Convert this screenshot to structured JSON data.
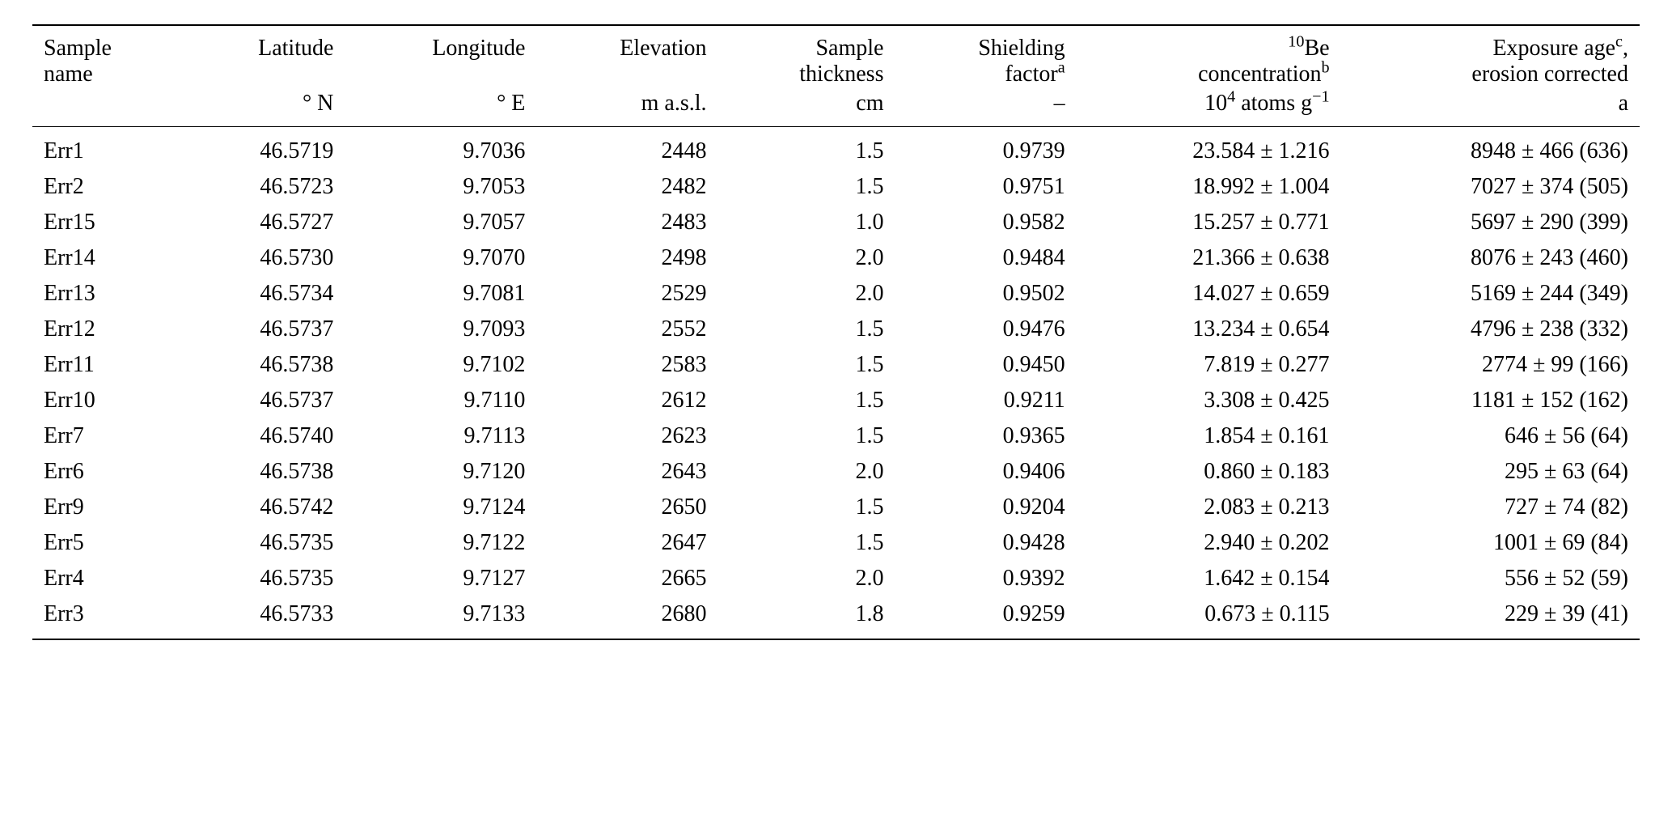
{
  "table": {
    "background_color": "#ffffff",
    "text_color": "#000000",
    "border_color": "#000000",
    "font_family": "Times New Roman",
    "base_fontsize_pt": 21,
    "columns": [
      {
        "key": "sample",
        "align": "left",
        "line1": "Sample",
        "line2": "name",
        "unit": ""
      },
      {
        "key": "lat",
        "align": "right",
        "line1": "Latitude",
        "line2": "",
        "unit": "° N"
      },
      {
        "key": "lon",
        "align": "right",
        "line1": "Longitude",
        "line2": "",
        "unit": "° E"
      },
      {
        "key": "elev",
        "align": "right",
        "line1": "Elevation",
        "line2": "",
        "unit": "m a.s.l."
      },
      {
        "key": "thick",
        "align": "right",
        "line1": "Sample",
        "line2": "thickness",
        "unit": "cm"
      },
      {
        "key": "shield",
        "align": "right",
        "line1": "Shielding",
        "line2": "factor",
        "sup2": "a",
        "unit": "–"
      },
      {
        "key": "be10",
        "align": "right",
        "line1_html": "<sup>10</sup>Be",
        "line2": "concentration",
        "sup2": "b",
        "unit_html": "10<sup>4</sup> atoms g<sup>−1</sup>"
      },
      {
        "key": "age",
        "align": "right",
        "line1": "Exposure age",
        "sup1": "c",
        "line1_tail": ",",
        "line2": "erosion corrected",
        "unit": "a"
      }
    ],
    "rows": [
      {
        "sample": "Err1",
        "lat": "46.5719",
        "lon": "9.7036",
        "elev": "2448",
        "thick": "1.5",
        "shield": "0.9739",
        "be10": "23.584 ± 1.216",
        "age": "8948 ± 466 (636)"
      },
      {
        "sample": "Err2",
        "lat": "46.5723",
        "lon": "9.7053",
        "elev": "2482",
        "thick": "1.5",
        "shield": "0.9751",
        "be10": "18.992 ± 1.004",
        "age": "7027 ± 374 (505)"
      },
      {
        "sample": "Err15",
        "lat": "46.5727",
        "lon": "9.7057",
        "elev": "2483",
        "thick": "1.0",
        "shield": "0.9582",
        "be10": "15.257 ± 0.771",
        "age": "5697 ± 290 (399)"
      },
      {
        "sample": "Err14",
        "lat": "46.5730",
        "lon": "9.7070",
        "elev": "2498",
        "thick": "2.0",
        "shield": "0.9484",
        "be10": "21.366 ± 0.638",
        "age": "8076 ± 243 (460)"
      },
      {
        "sample": "Err13",
        "lat": "46.5734",
        "lon": "9.7081",
        "elev": "2529",
        "thick": "2.0",
        "shield": "0.9502",
        "be10": "14.027 ± 0.659",
        "age": "5169 ± 244 (349)"
      },
      {
        "sample": "Err12",
        "lat": "46.5737",
        "lon": "9.7093",
        "elev": "2552",
        "thick": "1.5",
        "shield": "0.9476",
        "be10": "13.234 ± 0.654",
        "age": "4796 ± 238 (332)"
      },
      {
        "sample": "Err11",
        "lat": "46.5738",
        "lon": "9.7102",
        "elev": "2583",
        "thick": "1.5",
        "shield": "0.9450",
        "be10": "7.819 ± 0.277",
        "age": "2774 ± 99 (166)"
      },
      {
        "sample": "Err10",
        "lat": "46.5737",
        "lon": "9.7110",
        "elev": "2612",
        "thick": "1.5",
        "shield": "0.9211",
        "be10": "3.308 ± 0.425",
        "age": "1181 ± 152 (162)"
      },
      {
        "sample": "Err7",
        "lat": "46.5740",
        "lon": "9.7113",
        "elev": "2623",
        "thick": "1.5",
        "shield": "0.9365",
        "be10": "1.854 ± 0.161",
        "age": "646 ± 56 (64)"
      },
      {
        "sample": "Err6",
        "lat": "46.5738",
        "lon": "9.7120",
        "elev": "2643",
        "thick": "2.0",
        "shield": "0.9406",
        "be10": "0.860 ± 0.183",
        "age": "295 ± 63 (64)"
      },
      {
        "sample": "Err9",
        "lat": "46.5742",
        "lon": "9.7124",
        "elev": "2650",
        "thick": "1.5",
        "shield": "0.9204",
        "be10": "2.083 ± 0.213",
        "age": "727 ± 74 (82)"
      },
      {
        "sample": "Err5",
        "lat": "46.5735",
        "lon": "9.7122",
        "elev": "2647",
        "thick": "1.5",
        "shield": "0.9428",
        "be10": "2.940 ± 0.202",
        "age": "1001 ± 69 (84)"
      },
      {
        "sample": "Err4",
        "lat": "46.5735",
        "lon": "9.7127",
        "elev": "2665",
        "thick": "2.0",
        "shield": "0.9392",
        "be10": "1.642 ± 0.154",
        "age": "556 ± 52 (59)"
      },
      {
        "sample": "Err3",
        "lat": "46.5733",
        "lon": "9.7133",
        "elev": "2680",
        "thick": "1.8",
        "shield": "0.9259",
        "be10": "0.673 ± 0.115",
        "age": "229 ± 39 (41)"
      }
    ]
  }
}
